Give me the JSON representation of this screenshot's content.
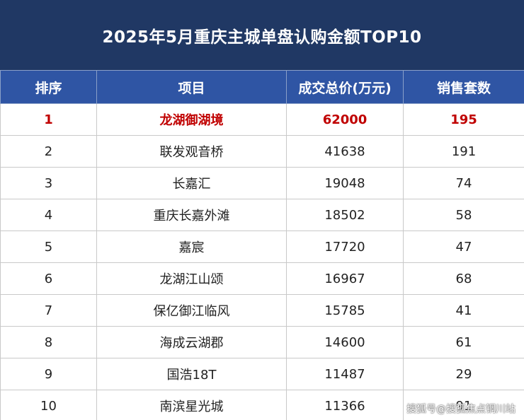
{
  "header": {
    "title": "2025年5月重庆主城单盘认购金额TOP10"
  },
  "chart_data": {
    "type": "table",
    "columns": [
      "排序",
      "项目",
      "成交总价(万元)",
      "销售套数"
    ],
    "rows": [
      [
        "1",
        "龙湖御湖境",
        "62000",
        "195"
      ],
      [
        "2",
        "联发观音桥",
        "41638",
        "191"
      ],
      [
        "3",
        "长嘉汇",
        "19048",
        "74"
      ],
      [
        "4",
        "重庆长嘉外滩",
        "18502",
        "58"
      ],
      [
        "5",
        "嘉宸",
        "17720",
        "47"
      ],
      [
        "6",
        "龙湖江山颂",
        "16967",
        "68"
      ],
      [
        "7",
        "保亿御江临风",
        "15785",
        "41"
      ],
      [
        "8",
        "海成云湖郡",
        "14600",
        "61"
      ],
      [
        "9",
        "国浩18T",
        "11487",
        "29"
      ],
      [
        "10",
        "南滨星光城",
        "11366",
        "91"
      ]
    ]
  },
  "watermark": "搜狐号@搜狐焦点铜川站",
  "colors": {
    "title_bg": "#203864",
    "header_bg": "#2f55a4",
    "highlight_text": "#c00000"
  }
}
